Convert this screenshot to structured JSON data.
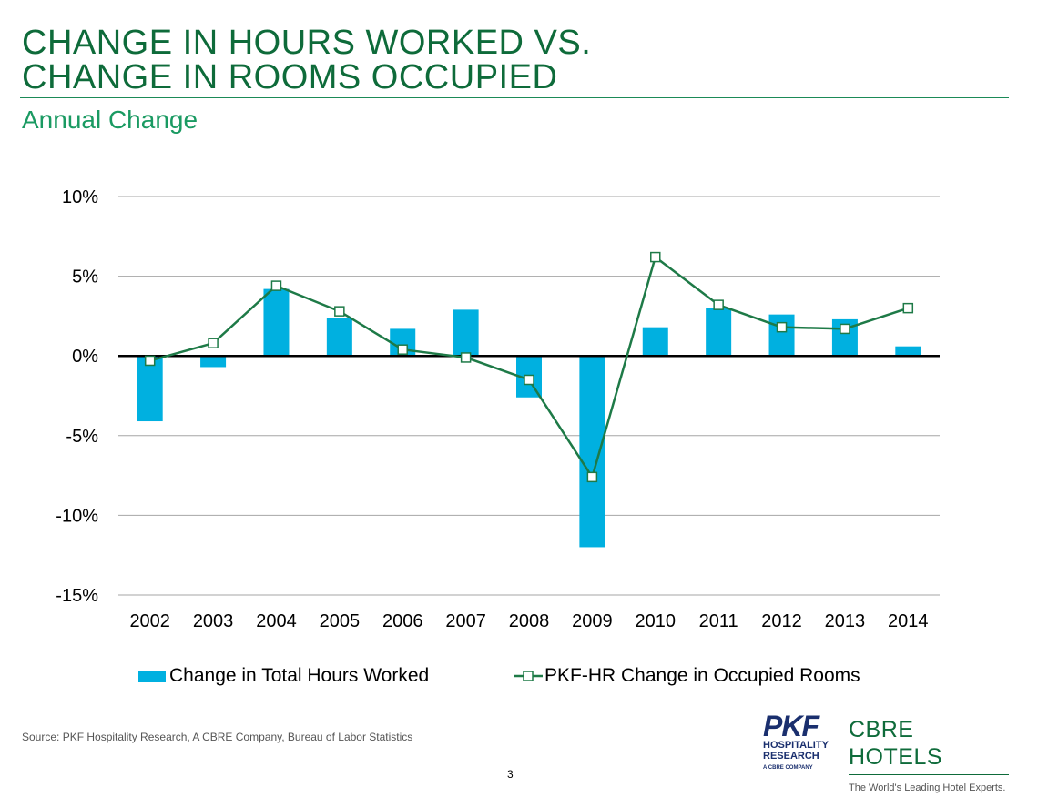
{
  "slide": {
    "title_line1": "CHANGE IN HOURS WORKED VS.",
    "title_line2": "CHANGE IN ROOMS OCCUPIED",
    "subtitle": "Annual Change",
    "source": "Source: PKF Hospitality Research, A CBRE Company, Bureau of Labor Statistics",
    "page_number": "3"
  },
  "logos": {
    "pkf_mark": "PKF",
    "pkf_line1": "HOSPITALITY",
    "pkf_line2": "RESEARCH",
    "pkf_line3": "A CBRE COMPANY",
    "cbre_mark": "CBRE HOTELS",
    "cbre_tagline": "The World's Leading Hotel Experts."
  },
  "colors": {
    "bar": "#00b0e0",
    "line": "#1e7a47",
    "title": "#0e6b3a",
    "subtitle": "#1a9a62",
    "grid": "#a6a6a6",
    "zero_line": "#000000"
  },
  "chart_data": {
    "type": "bar",
    "categories": [
      "2002",
      "2003",
      "2004",
      "2005",
      "2006",
      "2007",
      "2008",
      "2009",
      "2010",
      "2011",
      "2012",
      "2013",
      "2014"
    ],
    "series": [
      {
        "name": "Change in Total Hours Worked",
        "type": "bar",
        "values": [
          -4.1,
          -0.7,
          4.2,
          2.4,
          1.7,
          2.9,
          -2.6,
          -12.0,
          1.8,
          3.0,
          2.6,
          2.3,
          0.6
        ]
      },
      {
        "name": "PKF-HR Change in Occupied Rooms",
        "type": "line",
        "marker": "open-square",
        "values": [
          -0.3,
          0.8,
          4.4,
          2.8,
          0.4,
          -0.1,
          -1.5,
          -7.6,
          6.2,
          3.2,
          1.8,
          1.7,
          3.0
        ]
      }
    ],
    "y_ticks": [
      10,
      5,
      0,
      -5,
      -10,
      -15
    ],
    "y_tick_labels": [
      "10%",
      "5%",
      "0%",
      "-5%",
      "-10%",
      "-15%"
    ],
    "ylim": [
      -15,
      10
    ],
    "grid": true,
    "legend_position": "bottom"
  }
}
